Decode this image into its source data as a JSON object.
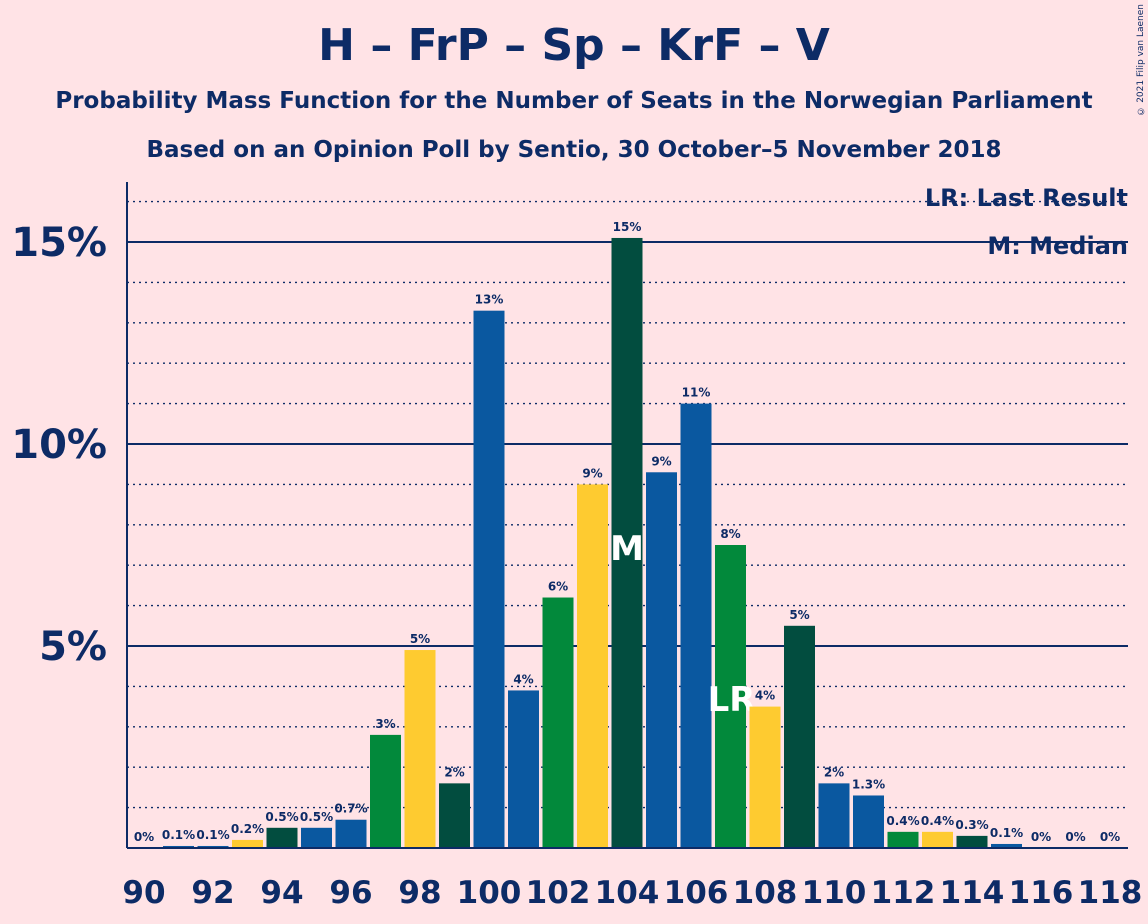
{
  "title": "H – FrP – Sp – KrF – V",
  "subtitle": "Probability Mass Function for the Number of Seats in the Norwegian Parliament",
  "subtitle2": "Based on an Opinion Poll by Sentio, 30 October–5 November 2018",
  "copyright": "© 2021 Filip van Laenen",
  "legend": {
    "last_result": "LR: Last Result",
    "median": "M: Median"
  },
  "colors": {
    "background": "#ffe3e6",
    "text": "#0d2b66",
    "blue": "#0a58a0",
    "darkgreen": "#024d3f",
    "green": "#02893b",
    "yellow": "#fecb30",
    "navy": "#07478f"
  },
  "chart_data": {
    "type": "bar",
    "x": [
      90,
      91,
      92,
      93,
      94,
      95,
      96,
      97,
      98,
      99,
      100,
      101,
      102,
      103,
      104,
      105,
      106,
      107,
      108,
      109,
      110,
      111,
      112,
      113,
      114,
      115,
      116,
      117,
      118
    ],
    "values": [
      0,
      0.05,
      0.05,
      0.2,
      0.5,
      0.5,
      0.7,
      2.8,
      4.9,
      1.6,
      13.3,
      3.9,
      6.2,
      9.0,
      15.1,
      9.3,
      11.0,
      7.5,
      3.5,
      5.5,
      1.6,
      1.3,
      0.4,
      0.4,
      0.3,
      0.1,
      0,
      0,
      0
    ],
    "labels": [
      "0%",
      "0.1%",
      "0.1%",
      "0.2%",
      "0.5%",
      "0.5%",
      "0.7%",
      "3%",
      "5%",
      "2%",
      "13%",
      "4%",
      "6%",
      "9%",
      "15%",
      "9%",
      "11%",
      "8%",
      "4%",
      "5%",
      "2%",
      "1.3%",
      "0.4%",
      "0.4%",
      "0.3%",
      "0.1%",
      "0%",
      "0%",
      "0%"
    ],
    "bar_colors": [
      "#0a58a0",
      "#0a58a0",
      "#0a58a0",
      "#fecb30",
      "#024d3f",
      "#0a58a0",
      "#0a58a0",
      "#02893b",
      "#fecb30",
      "#024d3f",
      "#0a58a0",
      "#0a58a0",
      "#02893b",
      "#fecb30",
      "#024d3f",
      "#0a58a0",
      "#0a58a0",
      "#02893b",
      "#fecb30",
      "#024d3f",
      "#0a58a0",
      "#0a58a0",
      "#02893b",
      "#fecb30",
      "#024d3f",
      "#0a58a0",
      "#0a58a0",
      "#0a58a0",
      "#0a58a0"
    ],
    "x_ticks": [
      90,
      92,
      94,
      96,
      98,
      100,
      102,
      104,
      106,
      108,
      110,
      112,
      114,
      116,
      118
    ],
    "y_ticks": [
      5,
      10,
      15
    ],
    "y_tick_labels": [
      "5%",
      "10%",
      "15%"
    ],
    "ylim": [
      0,
      16.5
    ],
    "median_seat": 104,
    "median_marker": "M",
    "last_result_seat": 107,
    "last_result_marker": "LR",
    "grid": true
  }
}
